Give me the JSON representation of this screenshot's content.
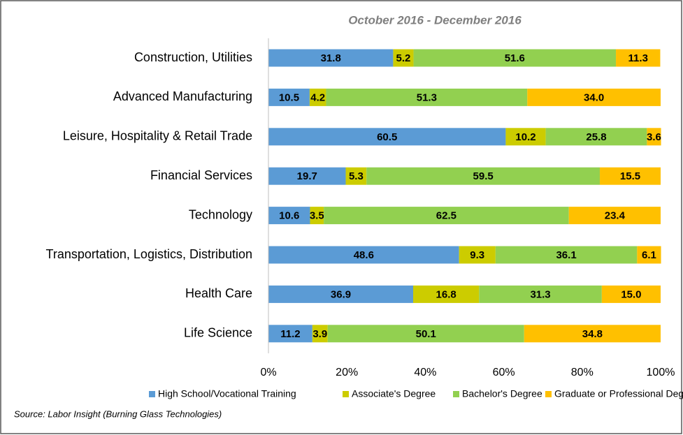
{
  "chart_data": {
    "type": "bar",
    "orientation": "horizontal",
    "stacked": true,
    "title": "October 2016 - December 2016",
    "source": "Source: Labor Insight (Burning Glass Technologies)",
    "categories": [
      "Construction, Utilities",
      "Advanced Manufacturing",
      "Leisure, Hospitality & Retail Trade",
      "Financial Services",
      "Technology",
      "Transportation, Logistics, Distribution",
      "Health Care",
      "Life Science"
    ],
    "series": [
      {
        "name": "High School/Vocational Training",
        "color": "#5b9bd5",
        "values": [
          31.8,
          10.5,
          60.5,
          19.7,
          10.6,
          48.6,
          36.9,
          11.2
        ],
        "value_labels": [
          "31.8",
          "10.5",
          "60.5",
          "19.7",
          "10.6",
          "48.6",
          "36.9",
          "11.2"
        ]
      },
      {
        "name": "Associate's Degree",
        "color": "#cccc00",
        "values": [
          5.2,
          4.2,
          10.2,
          5.3,
          3.5,
          9.3,
          16.8,
          3.9
        ],
        "value_labels": [
          "5.2",
          "4.2",
          "10.2",
          "5.3",
          "3.5",
          "9.3",
          "16.8",
          "3.9"
        ]
      },
      {
        "name": "Bachelor's Degree",
        "color": "#92d050",
        "values": [
          51.6,
          51.3,
          25.8,
          59.5,
          62.5,
          36.1,
          31.3,
          50.1
        ],
        "value_labels": [
          "51.6",
          "51.3",
          "25.8",
          "59.5",
          "62.5",
          "36.1",
          "31.3",
          "50.1"
        ]
      },
      {
        "name": "Graduate or Professional Degree",
        "color": "#ffc000",
        "values": [
          11.3,
          34.0,
          3.6,
          15.5,
          23.4,
          6.1,
          15.0,
          34.8
        ],
        "value_labels": [
          "11.3",
          "34.0",
          "3.6",
          "15.5",
          "23.4",
          "6.1",
          "15.0",
          "34.8"
        ]
      }
    ],
    "xlim": [
      0,
      100
    ],
    "xticks": [
      {
        "value": 0,
        "label": "0%"
      },
      {
        "value": 20,
        "label": "20%"
      },
      {
        "value": 40,
        "label": "40%"
      },
      {
        "value": 60,
        "label": "60%"
      },
      {
        "value": 80,
        "label": "80%"
      },
      {
        "value": 100,
        "label": "100%"
      }
    ],
    "legend": "bottom"
  }
}
